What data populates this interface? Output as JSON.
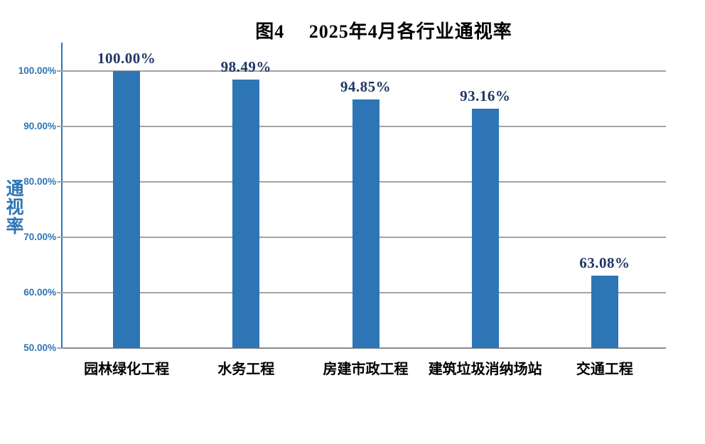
{
  "chart_data": {
    "type": "bar",
    "title": "图4　 2025年4月各行业通视率",
    "categories": [
      "园林绿化工程",
      "水务工程",
      "房建市政工程",
      "建筑垃圾消纳场站",
      "交通工程"
    ],
    "values": [
      100.0,
      98.49,
      94.85,
      93.16,
      63.08
    ],
    "data_labels": [
      "100.00%",
      "98.49%",
      "94.85%",
      "93.16%",
      "63.08%"
    ],
    "xlabel": "",
    "ylabel": "通视率",
    "ylim": [
      50,
      100
    ],
    "yticks": [
      {
        "value": 100,
        "label": "100.00%"
      },
      {
        "value": 90,
        "label": "90.00%"
      },
      {
        "value": 80,
        "label": "80.00%"
      },
      {
        "value": 70,
        "label": "70.00%"
      },
      {
        "value": 60,
        "label": "60.00%"
      },
      {
        "value": 50,
        "label": "50.00%"
      }
    ],
    "grid": "horizontal",
    "legend": "none",
    "colors": {
      "bar_fill": "#2E75B6",
      "axis_line": "#2E75B6",
      "tick_label": "#2E75B6",
      "y_axis_title": "#2E75B6",
      "data_label": "#1F3864",
      "gridline": "#A3A3A3",
      "baseline": "#8A8A8A",
      "title": "#000000",
      "category_label": "#000000"
    }
  }
}
